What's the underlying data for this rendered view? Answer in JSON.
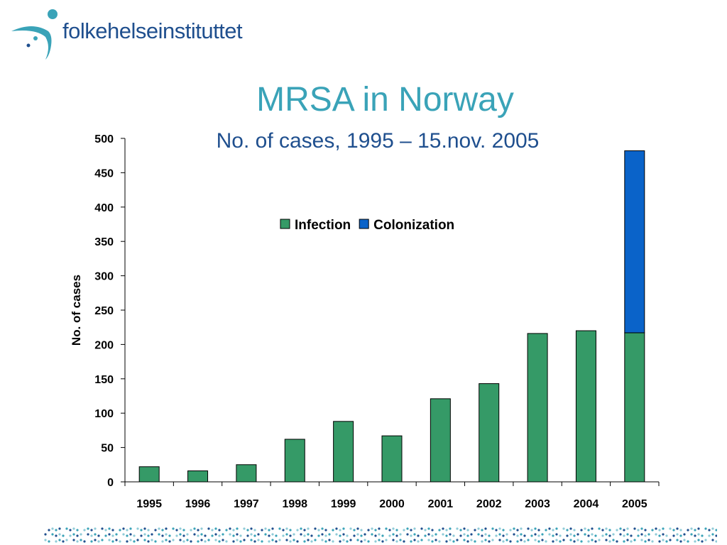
{
  "brand": {
    "name": "folkehelseinstituttet",
    "logo_icon": "figure-with-dots-icon",
    "colors": {
      "accent": "#3aa3b8",
      "dark_blue": "#1f4f8e"
    }
  },
  "chart_data": {
    "type": "bar",
    "stacked": true,
    "title": "MRSA in Norway",
    "subtitle": "No. of cases, 1995 – 15.nov. 2005",
    "xlabel": "",
    "ylabel": "No. of cases",
    "ylim": [
      0,
      500
    ],
    "yticks": [
      0,
      50,
      100,
      150,
      200,
      250,
      300,
      350,
      400,
      450,
      500
    ],
    "categories": [
      "1995",
      "1996",
      "1997",
      "1998",
      "1999",
      "2000",
      "2001",
      "2002",
      "2003",
      "2004",
      "2005"
    ],
    "series": [
      {
        "name": "Infection",
        "color": "#359a67",
        "values": [
          22,
          16,
          25,
          62,
          88,
          67,
          121,
          143,
          216,
          220,
          217
        ]
      },
      {
        "name": "Colonization",
        "color": "#0a63c9",
        "values": [
          0,
          0,
          0,
          0,
          0,
          0,
          0,
          0,
          0,
          0,
          265
        ]
      }
    ],
    "legend": "top-center",
    "grid": false
  }
}
